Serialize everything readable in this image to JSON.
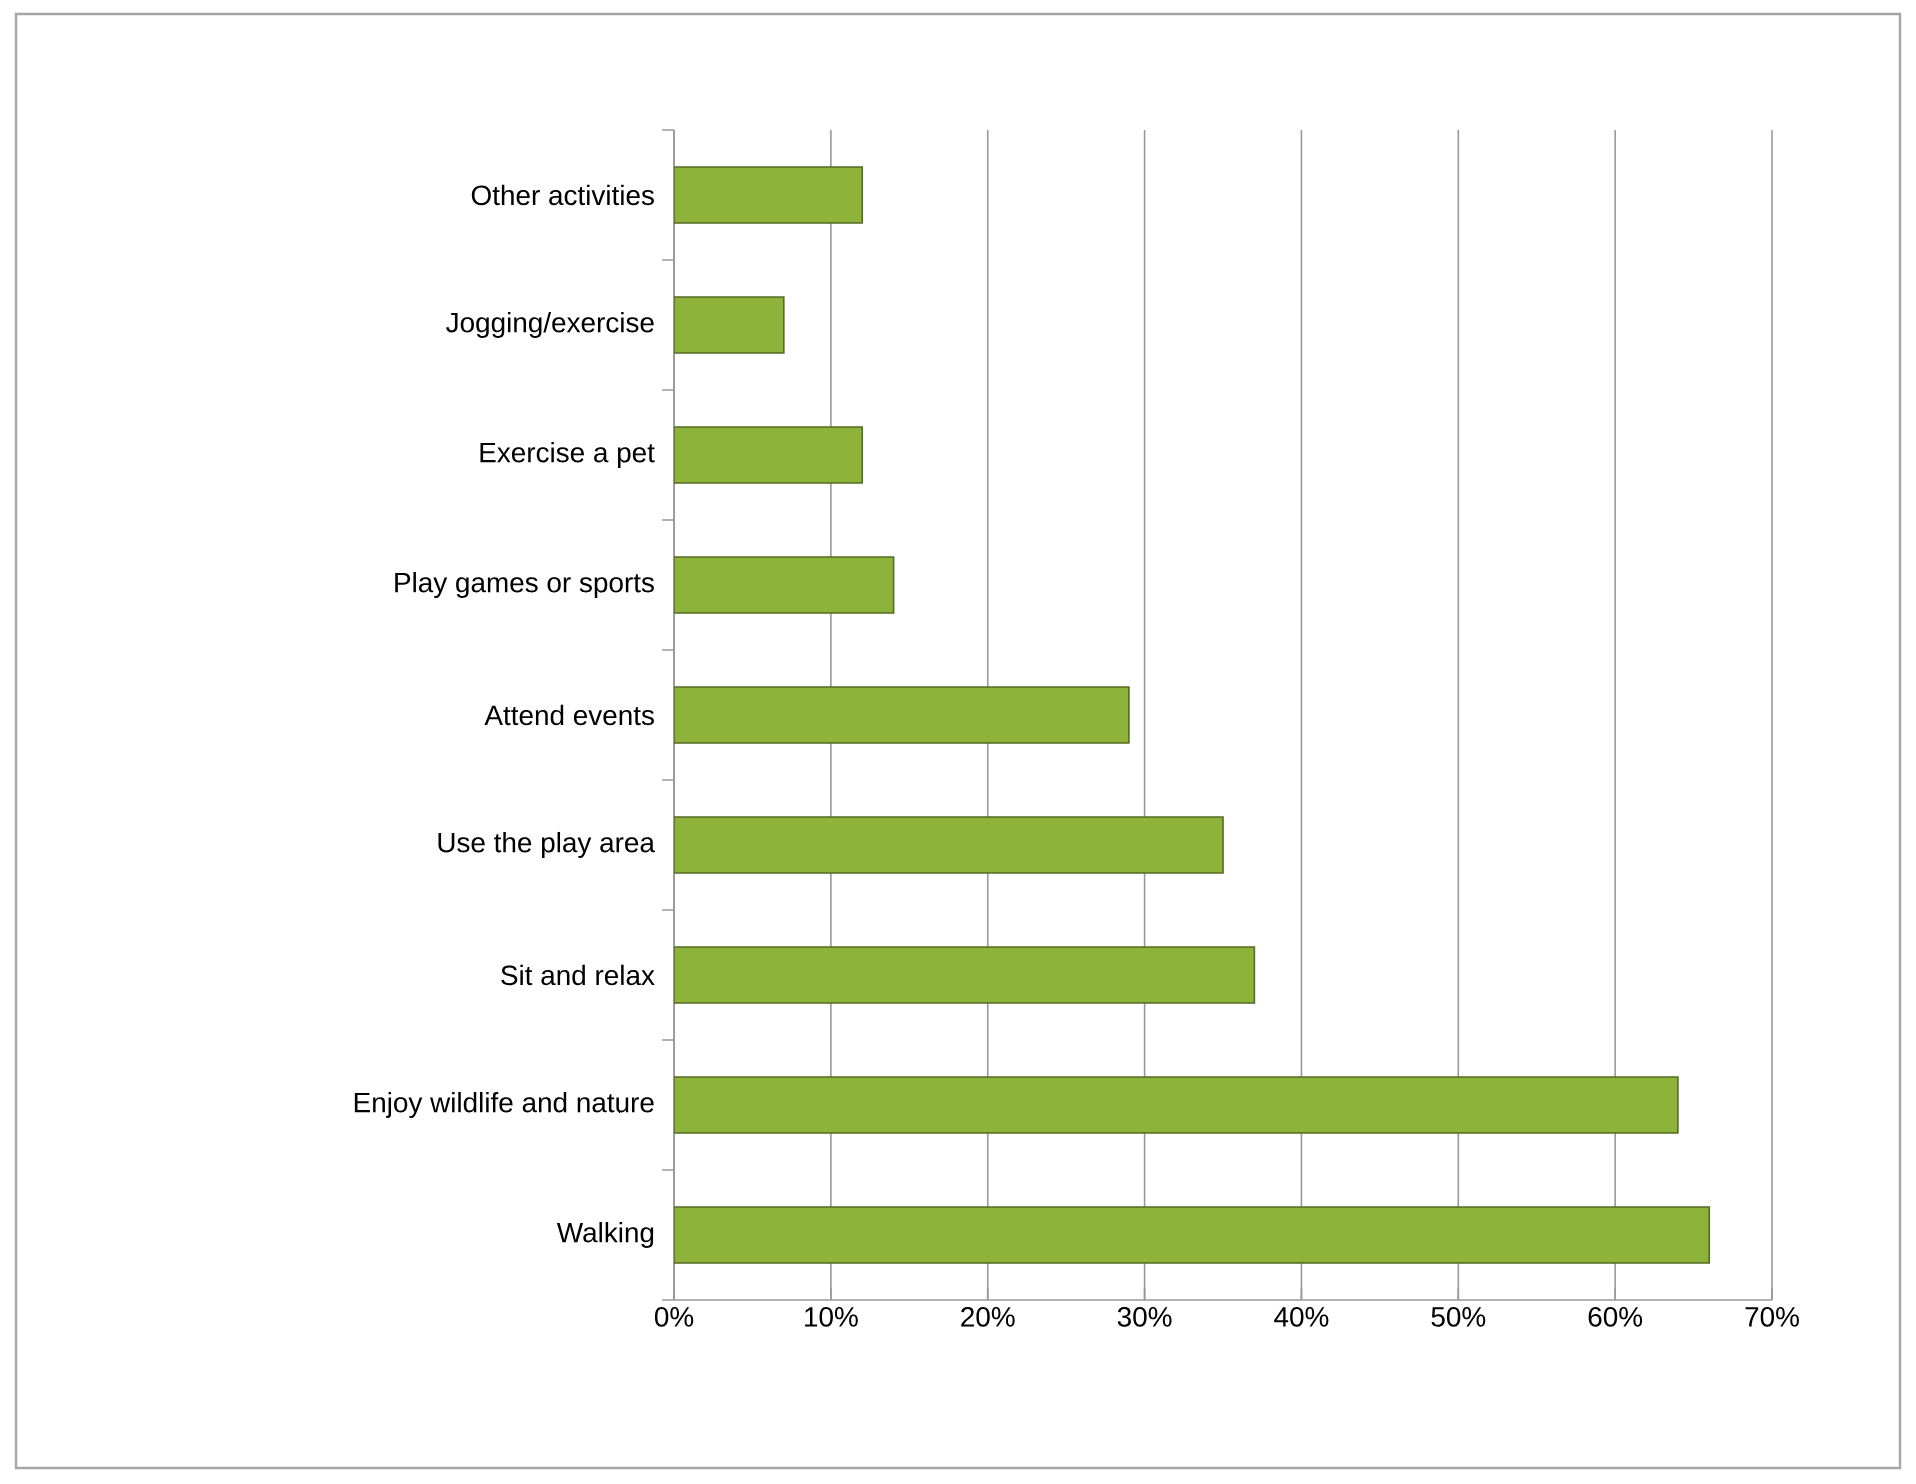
{
  "chart_data": {
    "type": "bar",
    "orientation": "horizontal",
    "categories": [
      "Other activities",
      "Jogging/exercise",
      "Exercise a pet",
      "Play games or sports",
      "Attend events",
      "Use the play area",
      "Sit and relax",
      "Enjoy wildlife and nature",
      "Walking"
    ],
    "values": [
      12,
      7,
      12,
      14,
      29,
      35,
      37,
      64,
      66
    ],
    "color": "#8db33a",
    "xlim": [
      0,
      70
    ],
    "xticks": [
      {
        "value": 0,
        "label": "0%"
      },
      {
        "value": 10,
        "label": "10%"
      },
      {
        "value": 20,
        "label": "20%"
      },
      {
        "value": 30,
        "label": "30%"
      },
      {
        "value": 40,
        "label": "40%"
      },
      {
        "value": 50,
        "label": "50%"
      },
      {
        "value": 60,
        "label": "60%"
      },
      {
        "value": 70,
        "label": "70%"
      }
    ],
    "grid": "x"
  }
}
